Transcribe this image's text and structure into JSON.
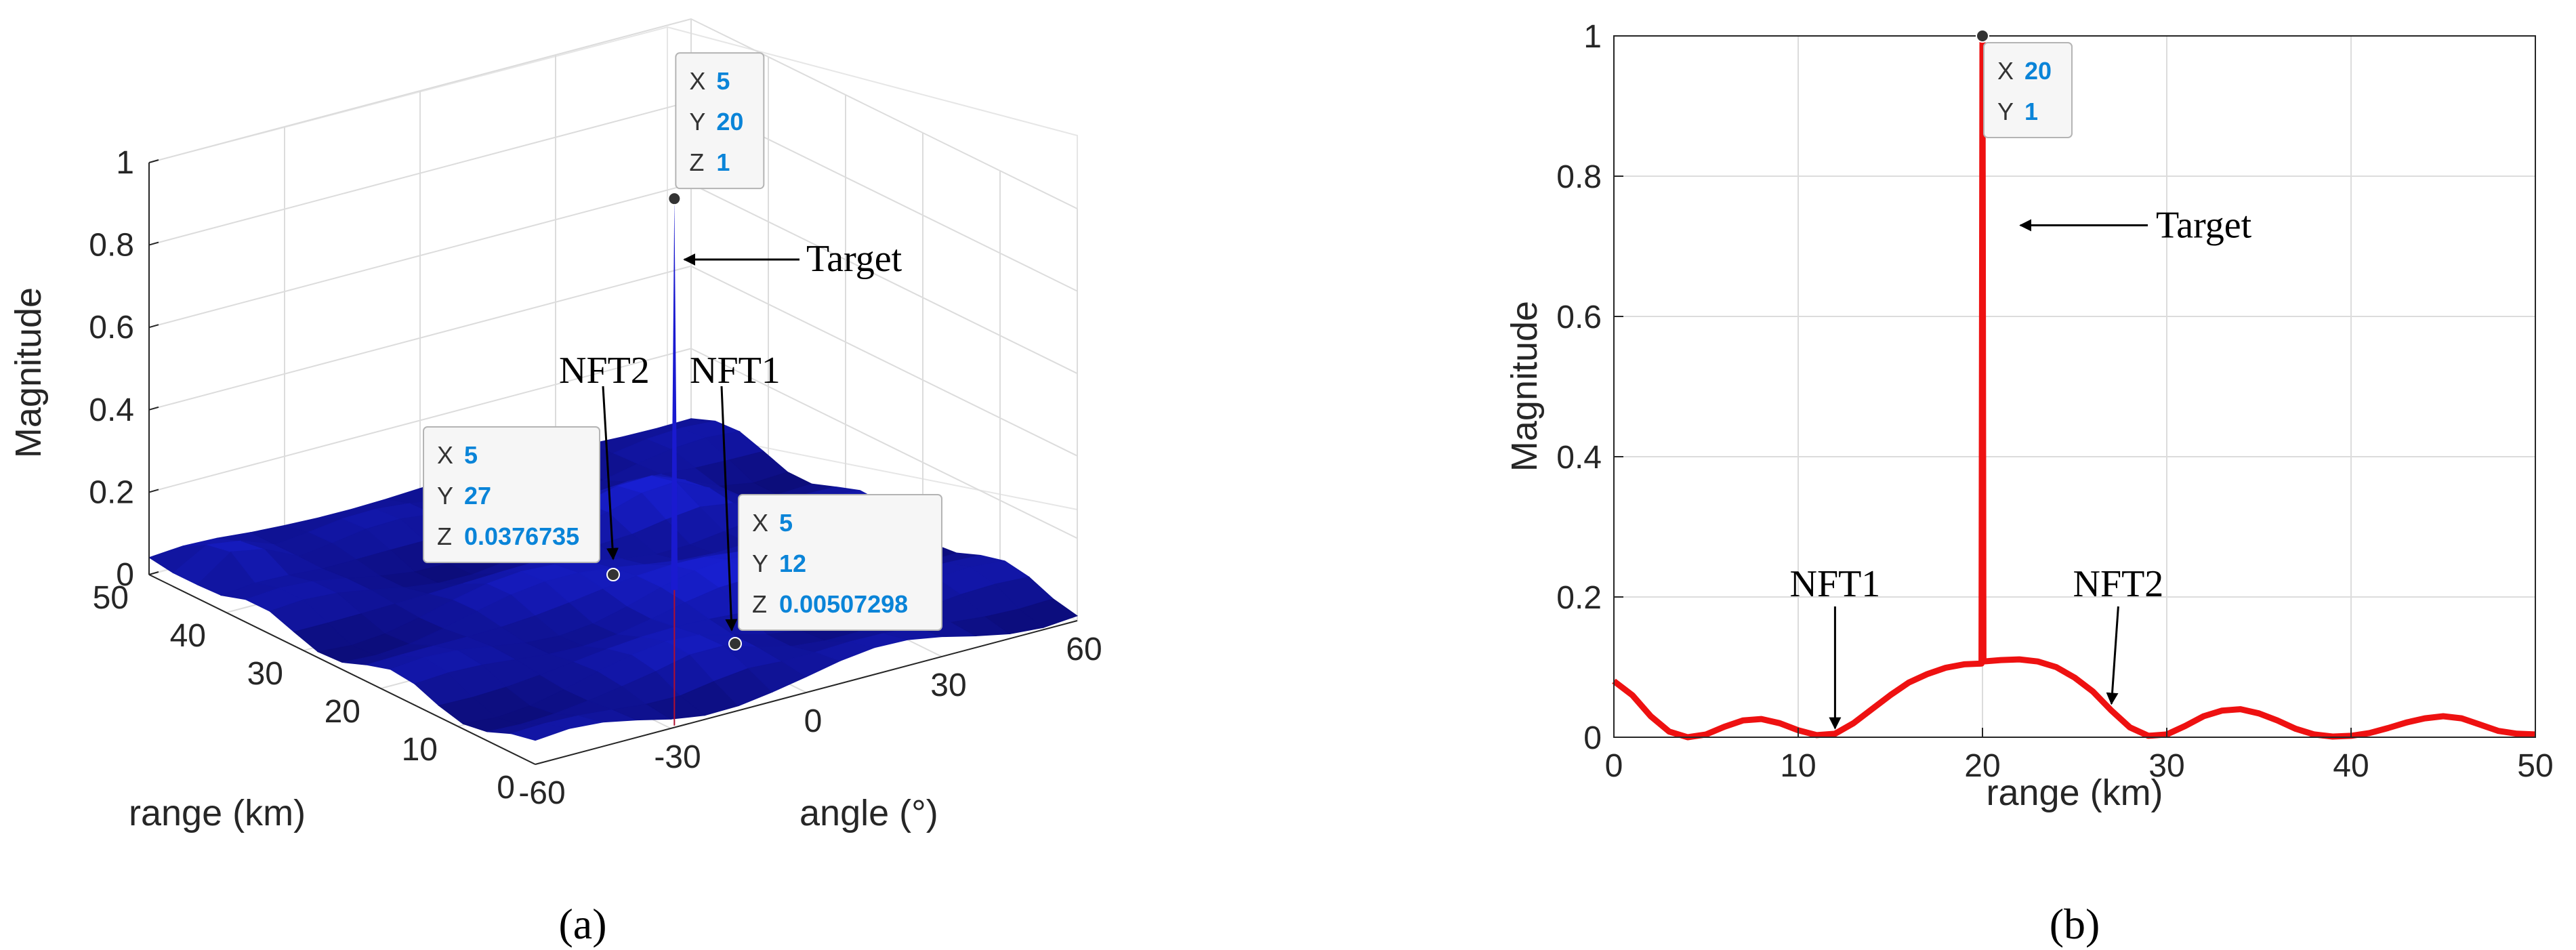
{
  "chart_data": [
    {
      "panel": "(a)",
      "type": "surface",
      "xlabel": "angle (°)",
      "ylabel": "range (km)",
      "zlabel": "Magnitude",
      "x_ticks": [
        "-60",
        "-30",
        "0",
        "30",
        "60"
      ],
      "y_ticks": [
        "0",
        "10",
        "20",
        "30",
        "40",
        "50"
      ],
      "z_ticks": [
        "0",
        "0.2",
        "0.4",
        "0.6",
        "0.8",
        "1"
      ],
      "xlim": [
        -60,
        60
      ],
      "ylim": [
        0,
        50
      ],
      "zlim": [
        0,
        1
      ],
      "surface_color": "#1010b0",
      "datatips": [
        {
          "x": 5,
          "y": 20,
          "z": 1,
          "x_text": "5",
          "y_text": "20",
          "z_text": "1"
        },
        {
          "x": 5,
          "y": 27,
          "z": 0.0376735,
          "x_text": "5",
          "y_text": "27",
          "z_text": "0.0376735"
        },
        {
          "x": 5,
          "y": 12,
          "z": 0.00507298,
          "x_text": "5",
          "y_text": "12",
          "z_text": "0.00507298"
        }
      ],
      "annotations": [
        {
          "text": "Target",
          "x": 5,
          "y": 20,
          "z": 0.88
        },
        {
          "text": "NFT2",
          "x": 5,
          "y": 27,
          "z": 0.04
        },
        {
          "text": "NFT1",
          "x": 5,
          "y": 12,
          "z": 0.005
        }
      ]
    },
    {
      "panel": "(b)",
      "type": "line",
      "xlabel": "range (km)",
      "ylabel": "Magnitude",
      "xlim": [
        0,
        50
      ],
      "ylim": [
        0,
        1
      ],
      "x_ticks": [
        "0",
        "10",
        "20",
        "30",
        "40",
        "50"
      ],
      "y_ticks": [
        "0",
        "0.2",
        "0.4",
        "0.6",
        "0.8",
        "1"
      ],
      "line_color": "#ee1111",
      "x": [
        0,
        1,
        2,
        3,
        4,
        5,
        6,
        7,
        8,
        9,
        10,
        11,
        12,
        13,
        14,
        15,
        16,
        17,
        18,
        19,
        19.95,
        20,
        20.05,
        21,
        22,
        23,
        24,
        25,
        26,
        27,
        28,
        29,
        30,
        31,
        32,
        33,
        34,
        35,
        36,
        37,
        38,
        39,
        40,
        41,
        42,
        43,
        44,
        45,
        46,
        47,
        48,
        49,
        50
      ],
      "y": [
        0.08,
        0.06,
        0.03,
        0.008,
        0.0,
        0.004,
        0.015,
        0.024,
        0.026,
        0.02,
        0.01,
        0.003,
        0.005,
        0.02,
        0.04,
        0.06,
        0.078,
        0.09,
        0.099,
        0.104,
        0.105,
        1,
        0.108,
        0.11,
        0.111,
        0.108,
        0.1,
        0.085,
        0.065,
        0.038,
        0.014,
        0.002,
        0.004,
        0.016,
        0.03,
        0.038,
        0.04,
        0.034,
        0.024,
        0.012,
        0.004,
        0.001,
        0.002,
        0.006,
        0.013,
        0.021,
        0.027,
        0.03,
        0.027,
        0.018,
        0.009,
        0.005,
        0.004
      ],
      "datatips": [
        {
          "x": 20,
          "y": 1,
          "x_text": "20",
          "y_text": "1"
        }
      ],
      "annotations": [
        {
          "text": "Target",
          "x": 20,
          "y": 0.73
        },
        {
          "text": "NFT1",
          "x": 12,
          "y": 0.005
        },
        {
          "text": "NFT2",
          "x": 27,
          "y": 0.04
        }
      ]
    }
  ]
}
